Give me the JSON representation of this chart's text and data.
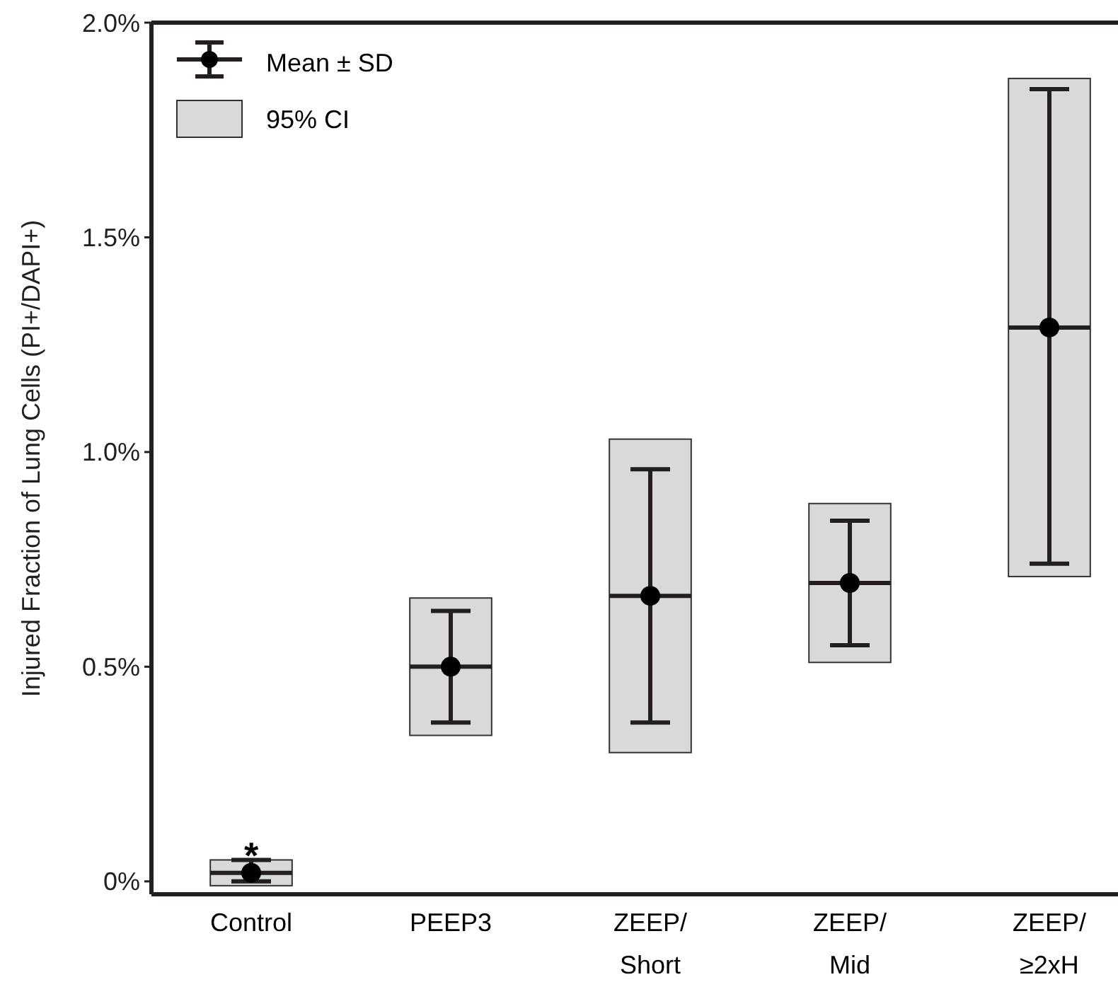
{
  "chart_data": {
    "type": "box",
    "ylabel": "Injured Fraction of Lung Cells (PI+/DAPI+)",
    "categories": [
      "Control",
      "PEEP3",
      "ZEEP/\nShort",
      "ZEEP/\nMid",
      "ZEEP/\n≥2xH"
    ],
    "series": [
      {
        "name": "95% CI",
        "color": "#d9d9d9",
        "boxes": [
          {
            "low": -0.01,
            "q1": -0.01,
            "median": 0.02,
            "q3": 0.05,
            "high": 0.05
          },
          {
            "low": 0.34,
            "q1": 0.34,
            "median": 0.5,
            "q3": 0.66,
            "high": 0.66
          },
          {
            "low": 0.3,
            "q1": 0.3,
            "median": 0.665,
            "q3": 1.03,
            "high": 1.03
          },
          {
            "low": 0.51,
            "q1": 0.51,
            "median": 0.695,
            "q3": 0.88,
            "high": 0.88
          },
          {
            "low": 0.71,
            "q1": 0.71,
            "median": 1.29,
            "q3": 1.87,
            "high": 1.87
          }
        ]
      },
      {
        "name": "Mean ± SD",
        "type": "scatter",
        "color": "#000000",
        "x": [
          "Control",
          "PEEP3",
          "ZEEP/\nShort",
          "ZEEP/\nMid",
          "ZEEP/\n≥2xH"
        ],
        "values": [
          0.02,
          0.5,
          0.665,
          0.695,
          1.29
        ],
        "errors": [
          [
            0.0,
            0.05
          ],
          [
            0.37,
            0.63
          ],
          [
            0.37,
            0.96
          ],
          [
            0.55,
            0.84
          ],
          [
            0.74,
            1.845
          ]
        ]
      }
    ],
    "ylim": [
      -0.03,
      2.0
    ],
    "yticks": [
      {
        "value": 0,
        "label": "0%"
      },
      {
        "value": 0.5,
        "label": "0.5%"
      },
      {
        "value": 1,
        "label": "1.0%"
      },
      {
        "value": 1.5,
        "label": "1.5%"
      },
      {
        "value": 2,
        "label": "2.0%"
      }
    ],
    "annotations": [
      {
        "text": "*",
        "x": "Control",
        "y": 0.07
      }
    ],
    "legend": "top left",
    "marker": "circle"
  }
}
